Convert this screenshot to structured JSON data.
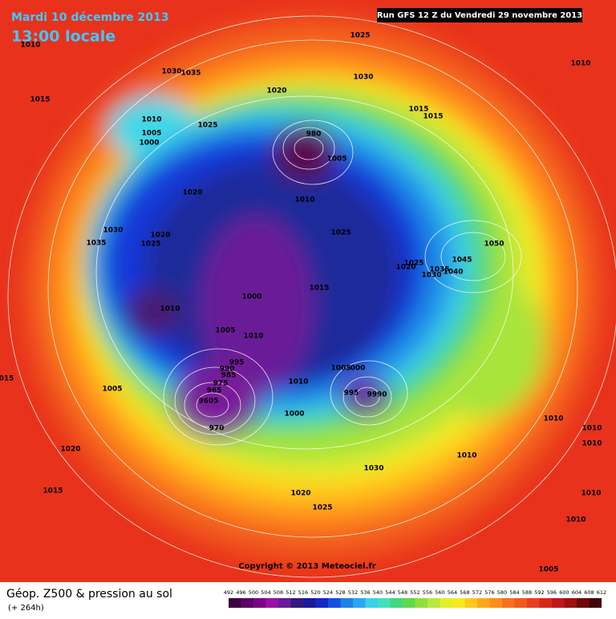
{
  "header": {
    "date": "Mardi 10 décembre 2013",
    "time": "13:00 locale",
    "run": "Run GFS 12 Z du Vendredi 29 novembre 2013"
  },
  "isobar_labels": [
    "1010",
    "1025",
    "1030",
    "1035",
    "1030",
    "1010",
    "1015",
    "1020",
    "1010",
    "1005",
    "1000",
    "1025",
    "1015",
    "1015",
    "980",
    "1005",
    "1020",
    "1010",
    "1030",
    "1025",
    "1020",
    "1035",
    "1025",
    "1050",
    "1045",
    "1025",
    "1020",
    "1035",
    "1040",
    "1030",
    "1015",
    "1000",
    "1010",
    "1005",
    "1010",
    "995",
    "990",
    "985",
    "975",
    "965",
    "9605",
    "970",
    "1005",
    "000",
    "1010",
    "995",
    "9990",
    "1005",
    "1000",
    "1010",
    "1010",
    "1010",
    "1010",
    "1030",
    "1020",
    "1015",
    "1020",
    "1025",
    "1010",
    "1010",
    "1005",
    "015"
  ],
  "copyright": "Copyright © 2013 Meteociel.fr",
  "footer": {
    "title": "Géop. Z500 & pression au sol",
    "lead": "(+ 264h)"
  },
  "scale": {
    "ticks": [
      492,
      496,
      500,
      504,
      508,
      512,
      516,
      520,
      524,
      528,
      532,
      536,
      540,
      544,
      548,
      552,
      556,
      560,
      564,
      568,
      572,
      576,
      580,
      584,
      588,
      592,
      596,
      600,
      604,
      608,
      612
    ]
  }
}
